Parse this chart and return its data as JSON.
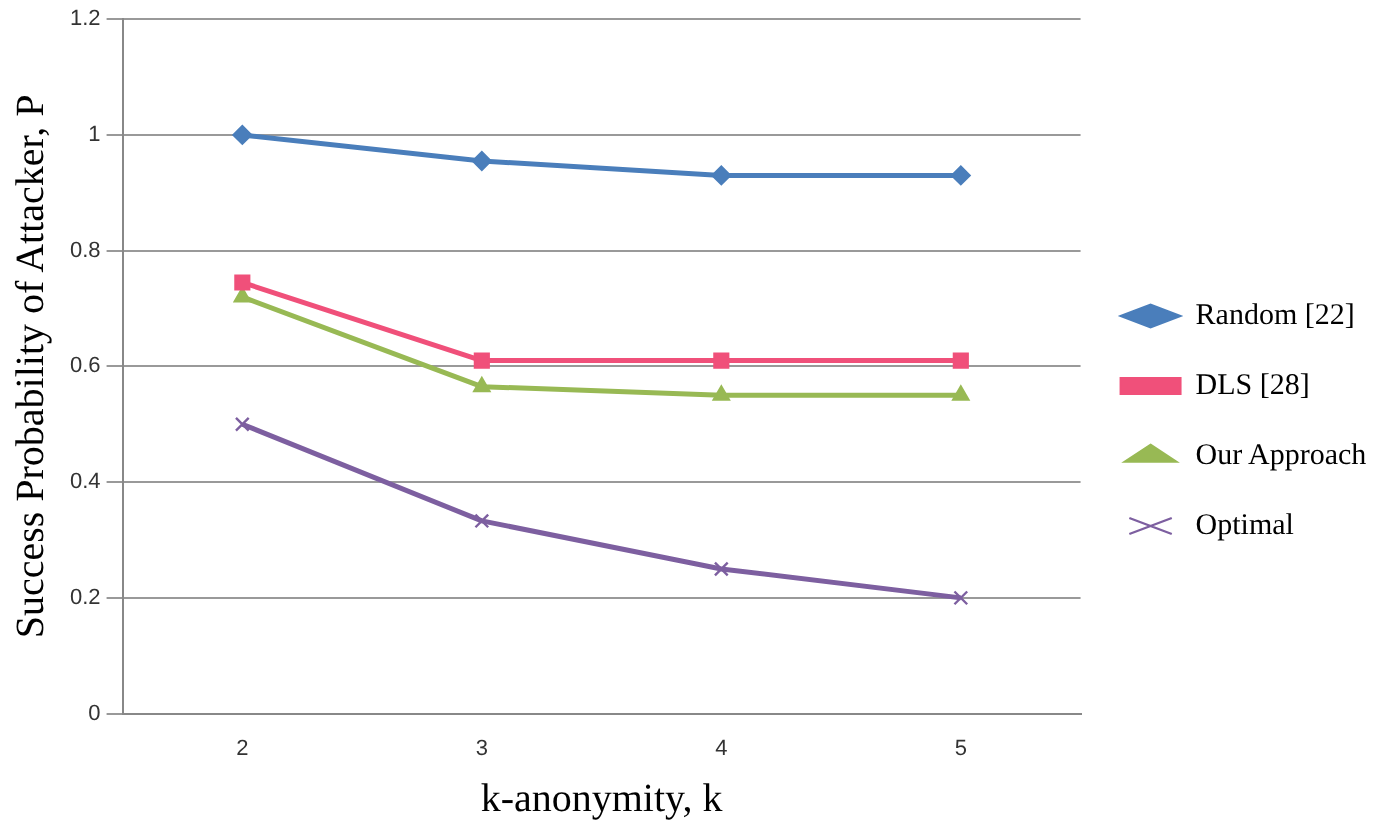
{
  "chart_data": {
    "type": "line",
    "xlabel": "k-anonymity, k",
    "ylabel": "Success Probability of Attacker, P",
    "categories": [
      "2",
      "3",
      "4",
      "5"
    ],
    "series": [
      {
        "name": "Random [22]",
        "color": "#4a7ebb",
        "values": [
          1,
          0.955,
          0.93,
          0.93
        ],
        "marker": "diamond"
      },
      {
        "name": "DLS [28]",
        "color": "#f0507a",
        "values": [
          0.745,
          0.61,
          0.61,
          0.61
        ],
        "marker": "square"
      },
      {
        "name": "Our Approach",
        "color": "#98b954",
        "values": [
          0.72,
          0.565,
          0.55,
          0.55
        ],
        "marker": "triangle"
      },
      {
        "name": "Optimal",
        "color": "#7d5fa0",
        "values": [
          0.5,
          0.333,
          0.25,
          0.2
        ],
        "marker": "cross"
      }
    ],
    "ylim": [
      0,
      1.2
    ],
    "yticks": [
      0,
      0.2,
      0.4,
      0.6,
      0.8,
      1,
      1.2
    ],
    "grid": "y",
    "legend": "right",
    "line_style": "solid"
  }
}
